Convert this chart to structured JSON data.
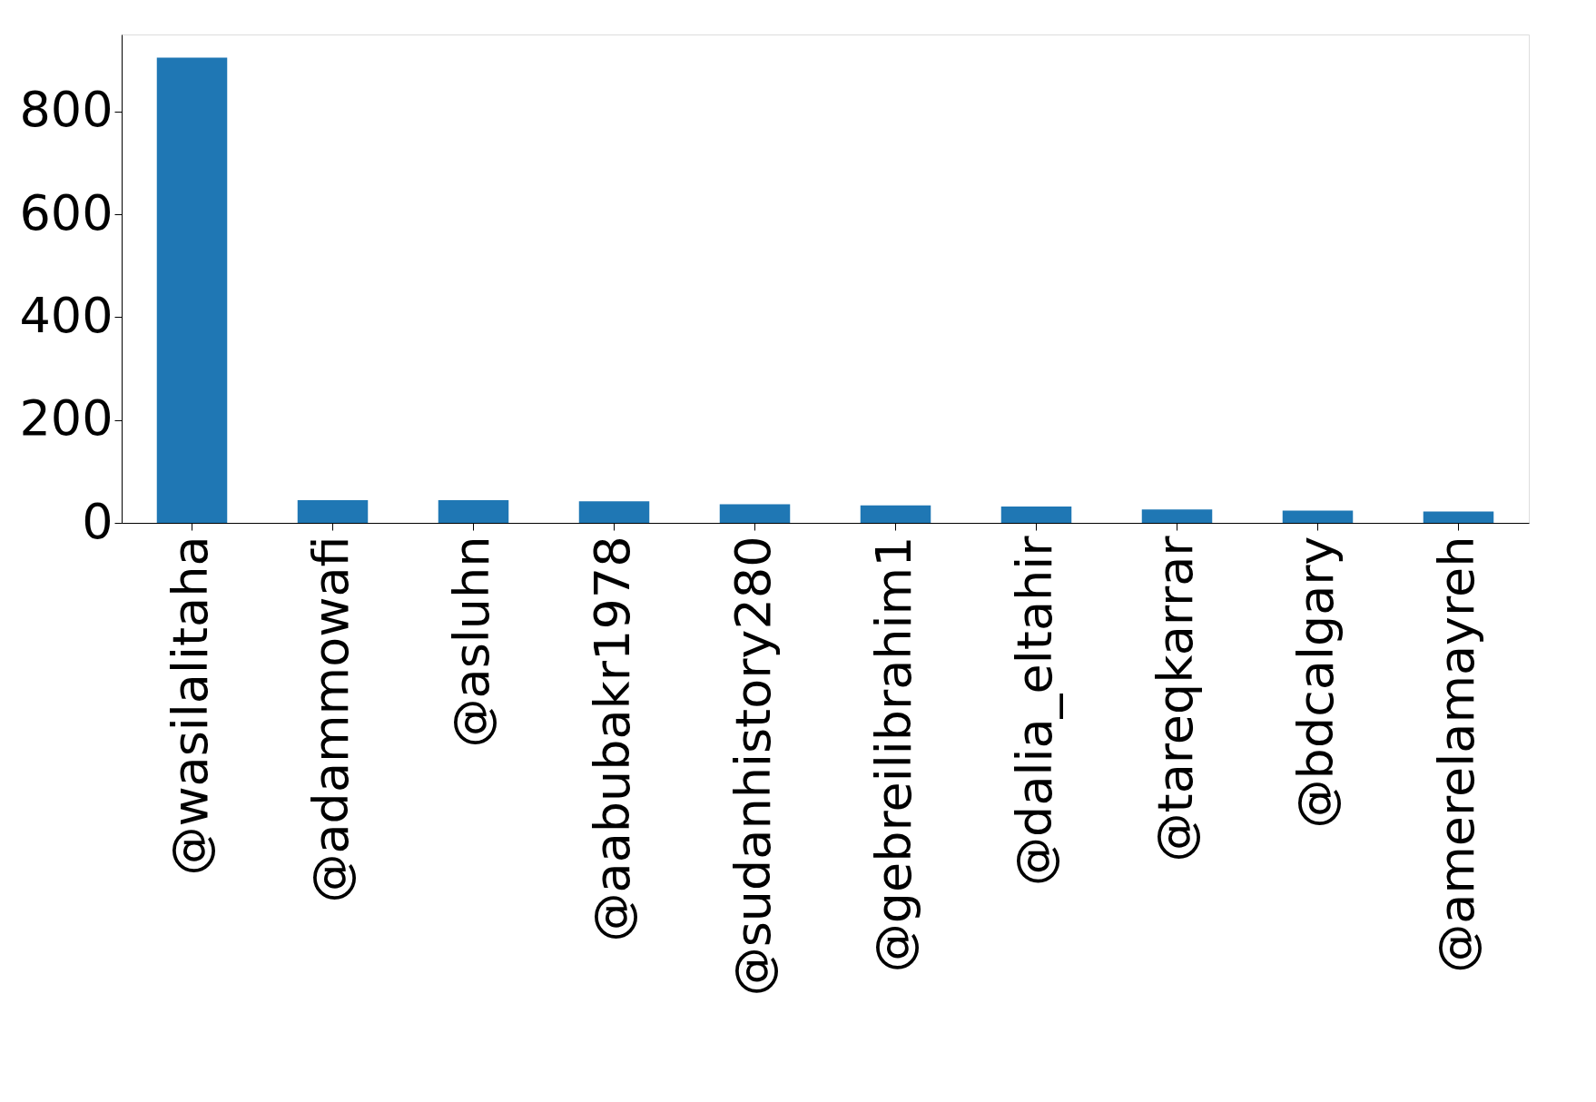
{
  "chart_data": {
    "type": "bar",
    "categories": [
      "@wasilalitaha",
      "@adammowafi",
      "@asluhn",
      "@aabubakr1978",
      "@sudanhistory280",
      "@gebreilibrahim1",
      "@dalia_eltahir",
      "@tareqkarrar",
      "@bdcalgary",
      "@amerelamayreh"
    ],
    "values": [
      905,
      44,
      44,
      42,
      36,
      34,
      32,
      26,
      24,
      22
    ],
    "color": "#1f77b4",
    "ylim": [
      0,
      950
    ],
    "yticks": [
      0,
      200,
      400,
      600,
      800
    ],
    "grid": false
  }
}
